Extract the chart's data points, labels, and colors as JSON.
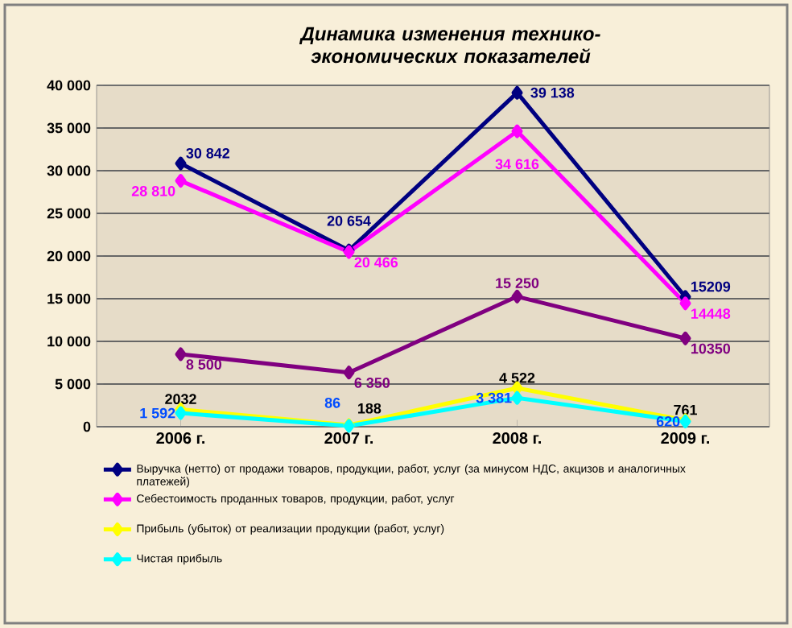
{
  "chart_data": {
    "type": "line",
    "title": "Динамика изменения  технико-экономических показателей",
    "categories": [
      "2006 г.",
      "2007 г.",
      "2008 г.",
      "2009 г."
    ],
    "series": [
      {
        "name": "Выручка (нетто) от продажи товаров, продукции, работ, услуг (за минусом НДС, акцизов и аналогичных платежей)",
        "color": "#000080",
        "values": [
          30842,
          20654,
          39138,
          15209
        ],
        "value_labels": [
          "30 842",
          "20 654",
          "39 138",
          "15209"
        ]
      },
      {
        "name": "Себестоимость проданных товаров, продукции, работ, услуг",
        "color": "#ff00ff",
        "values": [
          28810,
          20466,
          34616,
          14448
        ],
        "value_labels": [
          "28 810",
          "20 466",
          "34 616",
          "14448"
        ]
      },
      {
        "color": "#800080",
        "values": [
          8500,
          6350,
          15250,
          10350
        ],
        "value_labels": [
          "8 500",
          "6 350",
          "15 250",
          "10350"
        ]
      },
      {
        "name": "Прибыль (убыток) от реализации продукции (работ, услуг)",
        "color": "#ffff00",
        "values": [
          2032,
          188,
          4522,
          761
        ],
        "value_labels": [
          "2032",
          "188",
          "4 522",
          "761"
        ]
      },
      {
        "name": "Чистая прибыль",
        "color": "#00ffff",
        "values": [
          1592,
          86,
          3381,
          620
        ],
        "value_labels": [
          "1 592",
          "86",
          "3 381",
          "620"
        ]
      }
    ],
    "ylim": [
      0,
      40000
    ],
    "yticks": [
      {
        "value": 0,
        "label": "0"
      },
      {
        "value": 5000,
        "label": "5 000"
      },
      {
        "value": 10000,
        "label": "10 000"
      },
      {
        "value": 15000,
        "label": "15 000"
      },
      {
        "value": 20000,
        "label": "20 000"
      },
      {
        "value": 25000,
        "label": "25 000"
      },
      {
        "value": 30000,
        "label": "30 000"
      },
      {
        "value": 35000,
        "label": "35 000"
      },
      {
        "value": 40000,
        "label": "40 000"
      }
    ],
    "grid": "y",
    "legend": "bottom",
    "marker": "diamond",
    "line_style": "solid"
  }
}
